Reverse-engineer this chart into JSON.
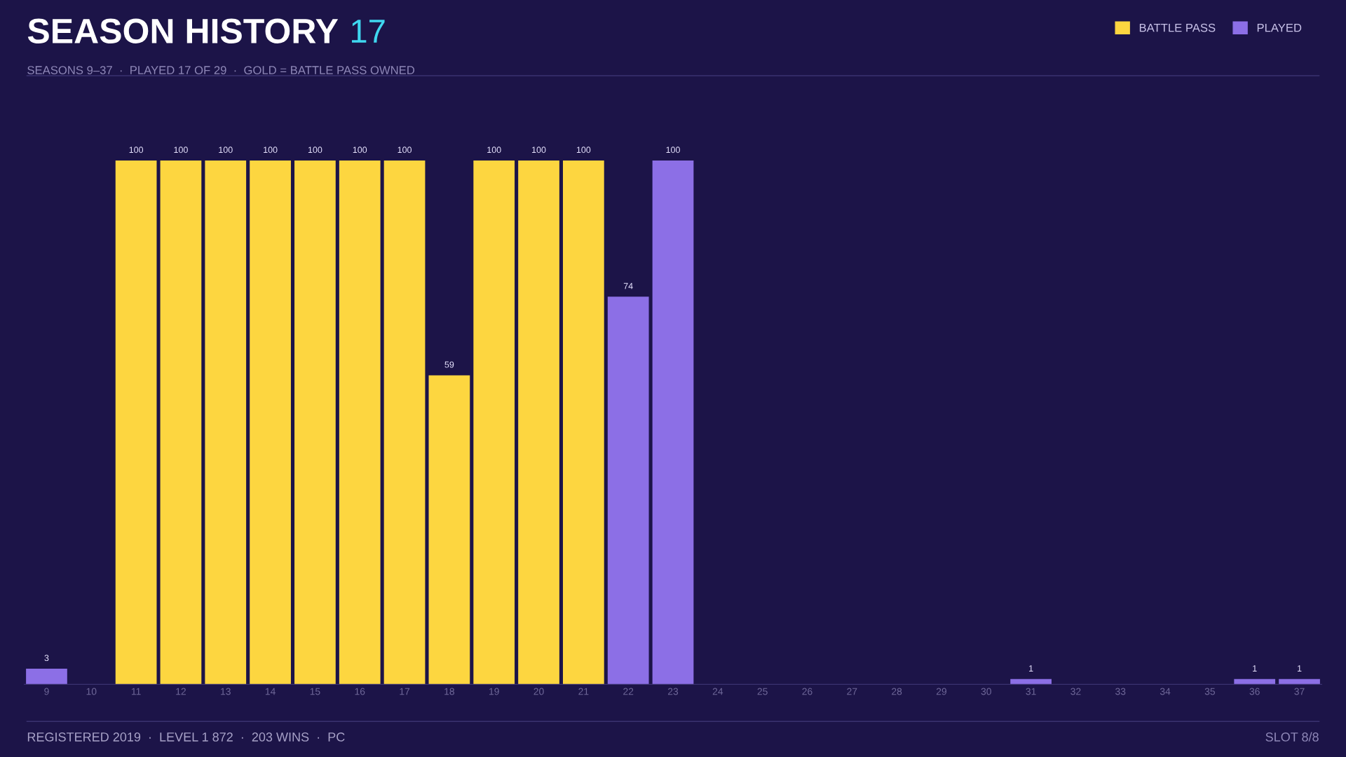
{
  "chart_data": {
    "type": "bar",
    "title": "SEASON HISTORY",
    "subtitle": "SEASONS 9–37  ·  PLAYED 17 OF 29  ·  GOLD = BATTLE PASS OWNED",
    "annotations": [
      "17",
      "REGISTERED 2019  ·  LEVEL 1 872  ·  203 WINS  ·  PC",
      "SLOT 8/8"
    ],
    "categories": [
      "9",
      "10",
      "11",
      "12",
      "13",
      "14",
      "15",
      "16",
      "17",
      "18",
      "19",
      "20",
      "21",
      "22",
      "23",
      "24",
      "25",
      "26",
      "27",
      "28",
      "29",
      "30",
      "31",
      "32",
      "33",
      "34",
      "35",
      "36",
      "37"
    ],
    "series": [
      {
        "name": "BATTLE PASS",
        "color": "#fdd640",
        "values": [
          null,
          null,
          100,
          100,
          100,
          100,
          100,
          100,
          100,
          59,
          100,
          100,
          100,
          null,
          null,
          null,
          null,
          null,
          null,
          null,
          null,
          null,
          null,
          null,
          null,
          null,
          null,
          null,
          null
        ],
        "value_labels": [
          null,
          null,
          "100",
          "100",
          "100",
          "100",
          "100",
          "100",
          "100",
          "59",
          "100",
          "100",
          "100",
          null,
          null,
          null,
          null,
          null,
          null,
          null,
          null,
          null,
          null,
          null,
          null,
          null,
          null,
          null,
          null
        ]
      },
      {
        "name": "PLAYED",
        "color": "#8c6fe6",
        "values": [
          3,
          0,
          null,
          null,
          null,
          null,
          null,
          null,
          null,
          null,
          null,
          null,
          null,
          74,
          100,
          0,
          0,
          0,
          0,
          0,
          0,
          0,
          1,
          0,
          0,
          0,
          0,
          1,
          1
        ],
        "value_labels": [
          "3",
          null,
          null,
          null,
          null,
          null,
          null,
          null,
          null,
          null,
          null,
          null,
          null,
          "74",
          "100",
          null,
          null,
          null,
          null,
          null,
          null,
          null,
          "1",
          null,
          null,
          null,
          null,
          "1",
          "1"
        ]
      }
    ],
    "ylim": [
      0,
      100
    ],
    "tick_labels": "x",
    "legend": "top right"
  }
}
